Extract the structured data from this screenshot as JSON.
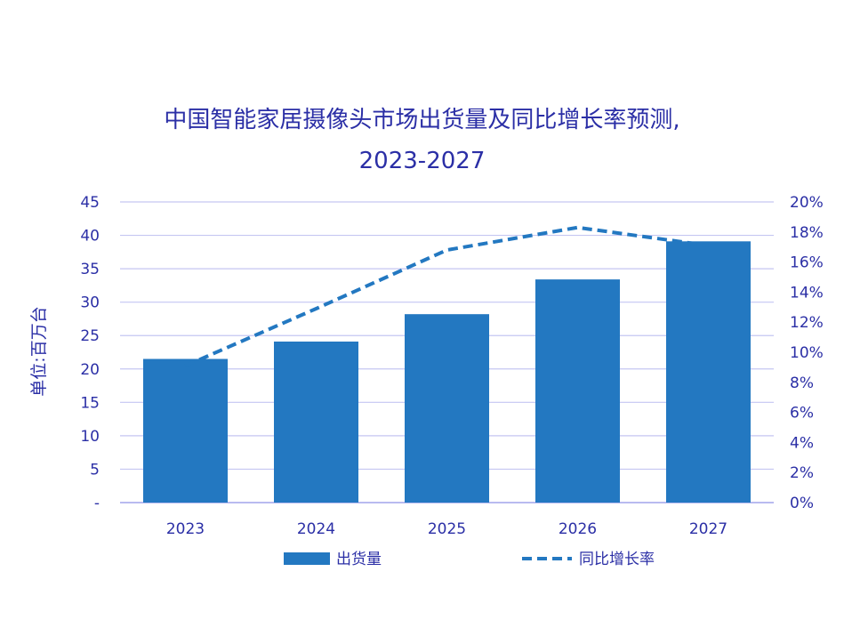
{
  "chart_data": {
    "type": "bar",
    "title_lines": [
      "中国智能家居摄像头市场出货量及同比增长率预测,",
      "2023-2027"
    ],
    "ylabel_left": "单位:百万台",
    "categories": [
      "2023",
      "2024",
      "2025",
      "2026",
      "2027"
    ],
    "y_left": {
      "range": [
        0,
        45
      ],
      "ticks": [
        0,
        5,
        10,
        15,
        20,
        25,
        30,
        35,
        40,
        45
      ],
      "tick_labels": [
        "-",
        "5",
        "10",
        "15",
        "20",
        "25",
        "30",
        "35",
        "40",
        "45"
      ]
    },
    "y_right": {
      "range": [
        0,
        20
      ],
      "ticks": [
        0,
        2,
        4,
        6,
        8,
        10,
        12,
        14,
        16,
        18,
        20
      ],
      "tick_labels": [
        "0%",
        "2%",
        "4%",
        "6%",
        "8%",
        "10%",
        "12%",
        "14%",
        "16%",
        "18%",
        "20%"
      ]
    },
    "series": [
      {
        "name": "出货量",
        "type": "bar",
        "axis": "left",
        "color": "#2378c1",
        "values": [
          21.5,
          24.1,
          28.2,
          33.4,
          39.1
        ]
      },
      {
        "name": "同比增长率",
        "type": "line",
        "style": "dashed",
        "axis": "right",
        "color": "#2378c1",
        "values": [
          9.1,
          12.9,
          16.8,
          18.3,
          17.1
        ]
      }
    ],
    "grid": true,
    "legend_position": "bottom"
  }
}
